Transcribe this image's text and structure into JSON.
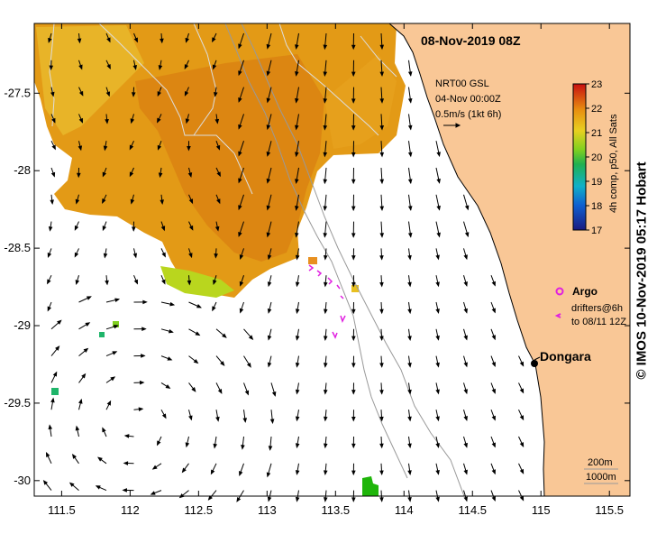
{
  "map": {
    "date_title": "08-Nov-2019 08Z",
    "x_ticks": [
      "111.5",
      "112",
      "112.5",
      "113",
      "113.5",
      "114",
      "114.5",
      "115",
      "115.5"
    ],
    "y_ticks": [
      "-27.5",
      "-28",
      "-28.5",
      "-29",
      "-29.5",
      "-30"
    ],
    "lon_range": [
      111.3,
      115.65
    ],
    "lat_range": [
      -30.1,
      -27.05
    ],
    "colors": {
      "land": "#f9c796",
      "coast": "#000000",
      "contour": "#999999",
      "sst_warm": "#e18a10",
      "sst_mid": "#e8b020",
      "sst_cool": "#b8d820",
      "sst_cold": "#1fb56a",
      "argo": "#e020e0"
    }
  },
  "vector_legend": {
    "line1": "NRT00 GSL",
    "line2": "04-Nov 00:00Z",
    "line3": "0.5m/s (1kt 6h)"
  },
  "colorbar": {
    "ticks": [
      "23",
      "22",
      "21",
      "20",
      "19",
      "18",
      "17"
    ],
    "label": "4h comp, p50, All Sats",
    "min": 17,
    "max": 23
  },
  "argo": {
    "label": "Argo"
  },
  "drifters": {
    "line1": "drifters@6h",
    "line2": "to 08/11 12Z"
  },
  "place": {
    "name": "Dongara"
  },
  "isobaths": {
    "line1": "200m",
    "line2": "1000m"
  },
  "credit": "© IMOS 10-Nov-2019 05:17 Hobart"
}
